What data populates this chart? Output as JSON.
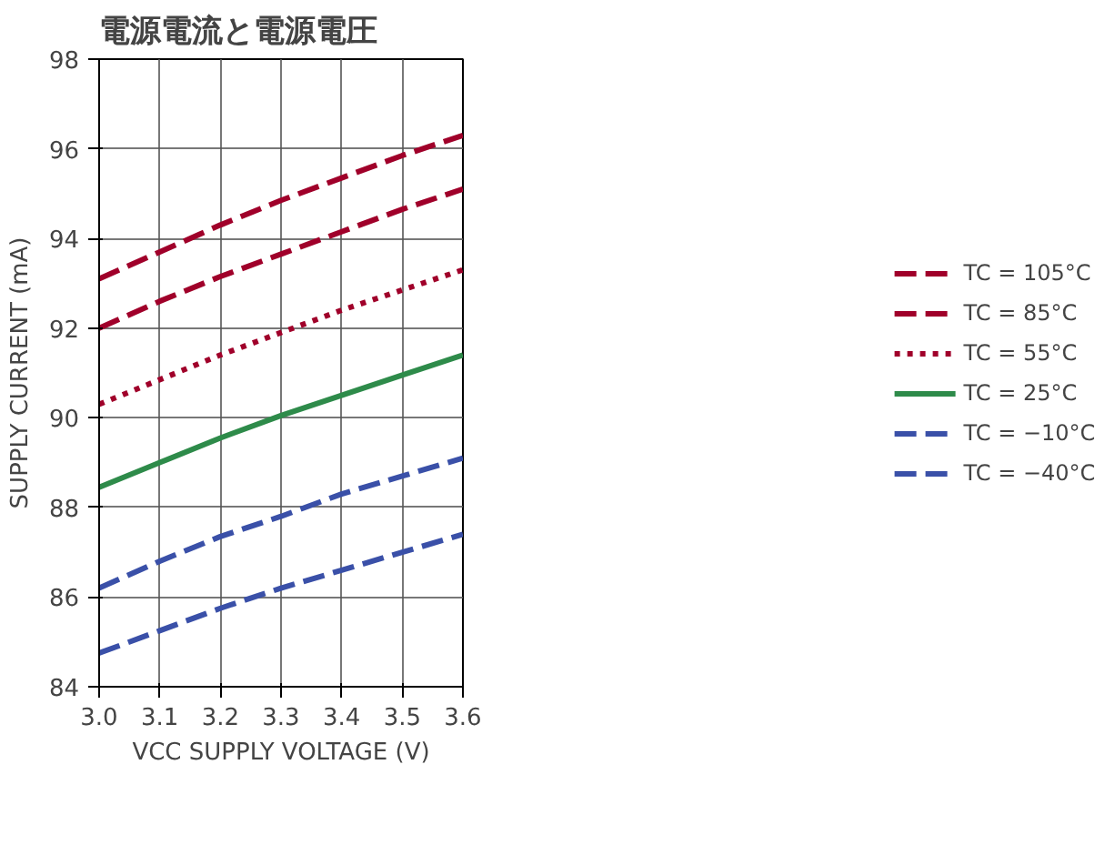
{
  "chart_data": {
    "type": "line",
    "title": "電源電流と電源電圧",
    "xlabel": "VCC SUPPLY VOLTAGE (V)",
    "ylabel": "SUPPLY CURRENT (mA)",
    "x": [
      3.0,
      3.1,
      3.2,
      3.3,
      3.4,
      3.5,
      3.6
    ],
    "series": [
      {
        "name": "TC = 105°C",
        "color": "#a0002a",
        "line_style": "dashed",
        "values": [
          93.1,
          93.7,
          94.3,
          94.85,
          95.35,
          95.85,
          96.3
        ]
      },
      {
        "name": "TC = 85°C",
        "color": "#a0002a",
        "line_style": "dashed",
        "values": [
          92.0,
          92.6,
          93.15,
          93.65,
          94.15,
          94.65,
          95.1
        ]
      },
      {
        "name": "TC = 55°C",
        "color": "#a0002a",
        "line_style": "dotted",
        "values": [
          90.3,
          90.85,
          91.4,
          91.9,
          92.4,
          92.85,
          93.3
        ]
      },
      {
        "name": "TC = 25°C",
        "color": "#2e8b4a",
        "line_style": "solid",
        "values": [
          88.45,
          89.0,
          89.55,
          90.05,
          90.5,
          90.95,
          91.4
        ]
      },
      {
        "name": "TC = −10°C",
        "color": "#3a50a8",
        "line_style": "dashed",
        "values": [
          86.2,
          86.8,
          87.35,
          87.8,
          88.3,
          88.7,
          89.1
        ]
      },
      {
        "name": "TC = −40°C",
        "color": "#3a50a8",
        "line_style": "dashed",
        "values": [
          84.75,
          85.25,
          85.75,
          86.2,
          86.6,
          87.0,
          87.4
        ]
      }
    ],
    "xlim": [
      3.0,
      3.6
    ],
    "xticks": [
      {
        "value": 3.0,
        "label": "3.0"
      },
      3.1,
      3.2,
      3.3,
      3.4,
      3.5,
      {
        "value": 3.6,
        "label": "3.6"
      }
    ],
    "ylim": [
      84,
      98
    ],
    "yticks": [
      84,
      86,
      88,
      90,
      92,
      94,
      96,
      98
    ],
    "grid": true,
    "legend": "right",
    "marker": "none"
  }
}
